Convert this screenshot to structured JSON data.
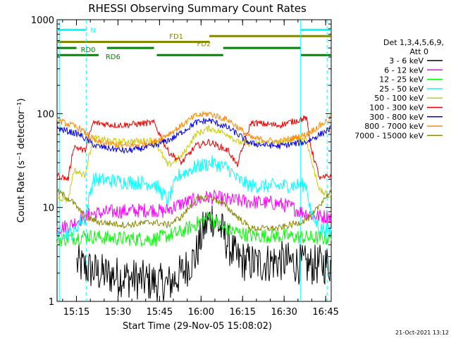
{
  "chart_data": {
    "type": "line",
    "title": "RHESSI Observing Summary Count Rates",
    "xlabel": "Start Time (29-Nov-05 15:08:02)",
    "ylabel": "Count Rate (s⁻¹ detector⁻¹)",
    "yscale": "log",
    "ylim": [
      1,
      1000
    ],
    "xlim_minutes": [
      0,
      99
    ],
    "x_ticks": [
      "15:15",
      "15:30",
      "15:45",
      "16:00",
      "16:15",
      "16:30",
      "16:45"
    ],
    "y_ticks": [
      "1",
      "10",
      "100",
      "1000"
    ],
    "legend_header": [
      "Det 1,3,4,5,6,9,",
      "Att 0"
    ],
    "legend_position": "right",
    "footer": "21-Oct-2021 13:12",
    "series": [
      {
        "name": "3 - 6 keV",
        "color": "#000000",
        "values": [
          {
            "x": 7,
            "y": 2.5
          },
          {
            "x": 15,
            "y": 2.0
          },
          {
            "x": 25,
            "y": 1.8
          },
          {
            "x": 35,
            "y": 1.6
          },
          {
            "x": 40,
            "y": 1.5
          },
          {
            "x": 45,
            "y": 2.0
          },
          {
            "x": 50,
            "y": 3.0
          },
          {
            "x": 53,
            "y": 6.0
          },
          {
            "x": 56,
            "y": 8.0
          },
          {
            "x": 59,
            "y": 6.0
          },
          {
            "x": 62,
            "y": 4.0
          },
          {
            "x": 65,
            "y": 2.8
          },
          {
            "x": 72,
            "y": 2.5
          },
          {
            "x": 80,
            "y": 2.7
          },
          {
            "x": 85,
            "y": 2.6
          },
          {
            "x": 90,
            "y": 2.4
          },
          {
            "x": 98,
            "y": 2.5
          }
        ]
      },
      {
        "name": "6 - 12 keV",
        "color": "#ff00ff",
        "values": [
          {
            "x": 0,
            "y": 6
          },
          {
            "x": 5,
            "y": 6.5
          },
          {
            "x": 8,
            "y": 7.5
          },
          {
            "x": 12,
            "y": 8.5
          },
          {
            "x": 20,
            "y": 9
          },
          {
            "x": 35,
            "y": 9.5
          },
          {
            "x": 38,
            "y": 9
          },
          {
            "x": 45,
            "y": 11
          },
          {
            "x": 55,
            "y": 13
          },
          {
            "x": 62,
            "y": 12
          },
          {
            "x": 70,
            "y": 11.5
          },
          {
            "x": 80,
            "y": 11
          },
          {
            "x": 85,
            "y": 10
          },
          {
            "x": 88,
            "y": 9
          },
          {
            "x": 95,
            "y": 8
          },
          {
            "x": 99,
            "y": 8
          }
        ]
      },
      {
        "name": "12 - 25 keV",
        "color": "#00ff00",
        "values": [
          {
            "x": 0,
            "y": 4.5
          },
          {
            "x": 10,
            "y": 5
          },
          {
            "x": 20,
            "y": 4.7
          },
          {
            "x": 35,
            "y": 4.6
          },
          {
            "x": 45,
            "y": 5.5
          },
          {
            "x": 55,
            "y": 8
          },
          {
            "x": 60,
            "y": 6
          },
          {
            "x": 70,
            "y": 5
          },
          {
            "x": 80,
            "y": 5
          },
          {
            "x": 90,
            "y": 4.8
          },
          {
            "x": 99,
            "y": 4.7
          }
        ]
      },
      {
        "name": "25 - 50 keV",
        "color": "#00ffff",
        "values": [
          {
            "x": 0,
            "y": 5.5
          },
          {
            "x": 6,
            "y": 5.3
          },
          {
            "x": 8,
            "y": 7
          },
          {
            "x": 10,
            "y": 7.5
          },
          {
            "x": 13,
            "y": 20
          },
          {
            "x": 22,
            "y": 19
          },
          {
            "x": 35,
            "y": 18
          },
          {
            "x": 40,
            "y": 12
          },
          {
            "x": 44,
            "y": 22
          },
          {
            "x": 50,
            "y": 27
          },
          {
            "x": 56,
            "y": 30
          },
          {
            "x": 62,
            "y": 26
          },
          {
            "x": 65,
            "y": 20
          },
          {
            "x": 70,
            "y": 17
          },
          {
            "x": 80,
            "y": 17
          },
          {
            "x": 90,
            "y": 17.5
          },
          {
            "x": 92,
            "y": 8
          },
          {
            "x": 95,
            "y": 6
          },
          {
            "x": 99,
            "y": 5.5
          }
        ]
      },
      {
        "name": "50 - 100 keV",
        "color": "#cccc00",
        "values": [
          {
            "x": 0,
            "y": 13
          },
          {
            "x": 4,
            "y": 12
          },
          {
            "x": 6,
            "y": 25
          },
          {
            "x": 10,
            "y": 22
          },
          {
            "x": 13,
            "y": 55
          },
          {
            "x": 22,
            "y": 50
          },
          {
            "x": 35,
            "y": 52
          },
          {
            "x": 40,
            "y": 28
          },
          {
            "x": 45,
            "y": 35
          },
          {
            "x": 50,
            "y": 60
          },
          {
            "x": 55,
            "y": 70
          },
          {
            "x": 62,
            "y": 60
          },
          {
            "x": 65,
            "y": 50
          },
          {
            "x": 70,
            "y": 48
          },
          {
            "x": 80,
            "y": 49
          },
          {
            "x": 90,
            "y": 55
          },
          {
            "x": 92,
            "y": 30
          },
          {
            "x": 95,
            "y": 15
          },
          {
            "x": 99,
            "y": 13
          }
        ]
      },
      {
        "name": "100 - 300 keV",
        "color": "#ee0000",
        "values": [
          {
            "x": 0,
            "y": 22
          },
          {
            "x": 4,
            "y": 20
          },
          {
            "x": 6,
            "y": 45
          },
          {
            "x": 10,
            "y": 40
          },
          {
            "x": 13,
            "y": 80
          },
          {
            "x": 22,
            "y": 75
          },
          {
            "x": 35,
            "y": 80
          },
          {
            "x": 40,
            "y": 40
          },
          {
            "x": 45,
            "y": 30
          },
          {
            "x": 50,
            "y": 45
          },
          {
            "x": 55,
            "y": 50
          },
          {
            "x": 62,
            "y": 40
          },
          {
            "x": 65,
            "y": 28
          },
          {
            "x": 70,
            "y": 80
          },
          {
            "x": 80,
            "y": 75
          },
          {
            "x": 90,
            "y": 90
          },
          {
            "x": 92,
            "y": 40
          },
          {
            "x": 95,
            "y": 20
          },
          {
            "x": 99,
            "y": 22
          }
        ]
      },
      {
        "name": "300 - 800 keV",
        "color": "#0000ee",
        "values": [
          {
            "x": 0,
            "y": 70
          },
          {
            "x": 8,
            "y": 60
          },
          {
            "x": 14,
            "y": 45
          },
          {
            "x": 25,
            "y": 40
          },
          {
            "x": 35,
            "y": 45
          },
          {
            "x": 42,
            "y": 55
          },
          {
            "x": 50,
            "y": 80
          },
          {
            "x": 55,
            "y": 85
          },
          {
            "x": 62,
            "y": 70
          },
          {
            "x": 70,
            "y": 48
          },
          {
            "x": 80,
            "y": 45
          },
          {
            "x": 90,
            "y": 50
          },
          {
            "x": 95,
            "y": 60
          },
          {
            "x": 99,
            "y": 70
          }
        ]
      },
      {
        "name": "800 - 7000 keV",
        "color": "#ff8800",
        "values": [
          {
            "x": 0,
            "y": 85
          },
          {
            "x": 8,
            "y": 70
          },
          {
            "x": 14,
            "y": 50
          },
          {
            "x": 25,
            "y": 45
          },
          {
            "x": 35,
            "y": 50
          },
          {
            "x": 42,
            "y": 65
          },
          {
            "x": 50,
            "y": 95
          },
          {
            "x": 55,
            "y": 100
          },
          {
            "x": 62,
            "y": 85
          },
          {
            "x": 70,
            "y": 55
          },
          {
            "x": 80,
            "y": 50
          },
          {
            "x": 90,
            "y": 60
          },
          {
            "x": 95,
            "y": 75
          },
          {
            "x": 99,
            "y": 90
          }
        ]
      },
      {
        "name": "7000 - 15000 keV",
        "color": "#888800",
        "values": [
          {
            "x": 0,
            "y": 15
          },
          {
            "x": 5,
            "y": 12
          },
          {
            "x": 10,
            "y": 8
          },
          {
            "x": 15,
            "y": 7
          },
          {
            "x": 25,
            "y": 6.5
          },
          {
            "x": 35,
            "y": 7
          },
          {
            "x": 40,
            "y": 6.5
          },
          {
            "x": 45,
            "y": 8
          },
          {
            "x": 50,
            "y": 12
          },
          {
            "x": 55,
            "y": 13
          },
          {
            "x": 60,
            "y": 11
          },
          {
            "x": 65,
            "y": 8
          },
          {
            "x": 70,
            "y": 6
          },
          {
            "x": 80,
            "y": 6
          },
          {
            "x": 88,
            "y": 7
          },
          {
            "x": 92,
            "y": 8
          },
          {
            "x": 96,
            "y": 12
          },
          {
            "x": 99,
            "y": 15
          }
        ]
      }
    ],
    "segments": [
      {
        "label": "N",
        "color": "#00ffff",
        "level": 780,
        "spans": [
          [
            0,
            10.5
          ],
          [
            88,
            99
          ]
        ]
      },
      {
        "label": "FD1",
        "color": "#888800",
        "level": 670,
        "spans": [
          [
            55,
            99
          ]
        ]
      },
      {
        "label": "FD2",
        "color": "#888800",
        "level": 580,
        "spans": [
          [
            0,
            55
          ]
        ]
      },
      {
        "label": "RD0",
        "color": "#008800",
        "level": 500,
        "spans": [
          [
            0,
            7
          ],
          [
            18,
            35
          ],
          [
            60,
            88
          ]
        ]
      },
      {
        "label": "RD6",
        "color": "#008800",
        "level": 420,
        "spans": [
          [
            0,
            15
          ],
          [
            36,
            60
          ],
          [
            88,
            99
          ]
        ]
      }
    ],
    "vlines": [
      {
        "x": 0.8,
        "color": "#00ffff",
        "style": "solid"
      },
      {
        "x": 10.5,
        "color": "#00ffff",
        "style": "dashed"
      },
      {
        "x": 88,
        "color": "#00ffff",
        "style": "solid"
      },
      {
        "x": 97.5,
        "color": "#00ffff",
        "style": "dashed"
      }
    ]
  }
}
